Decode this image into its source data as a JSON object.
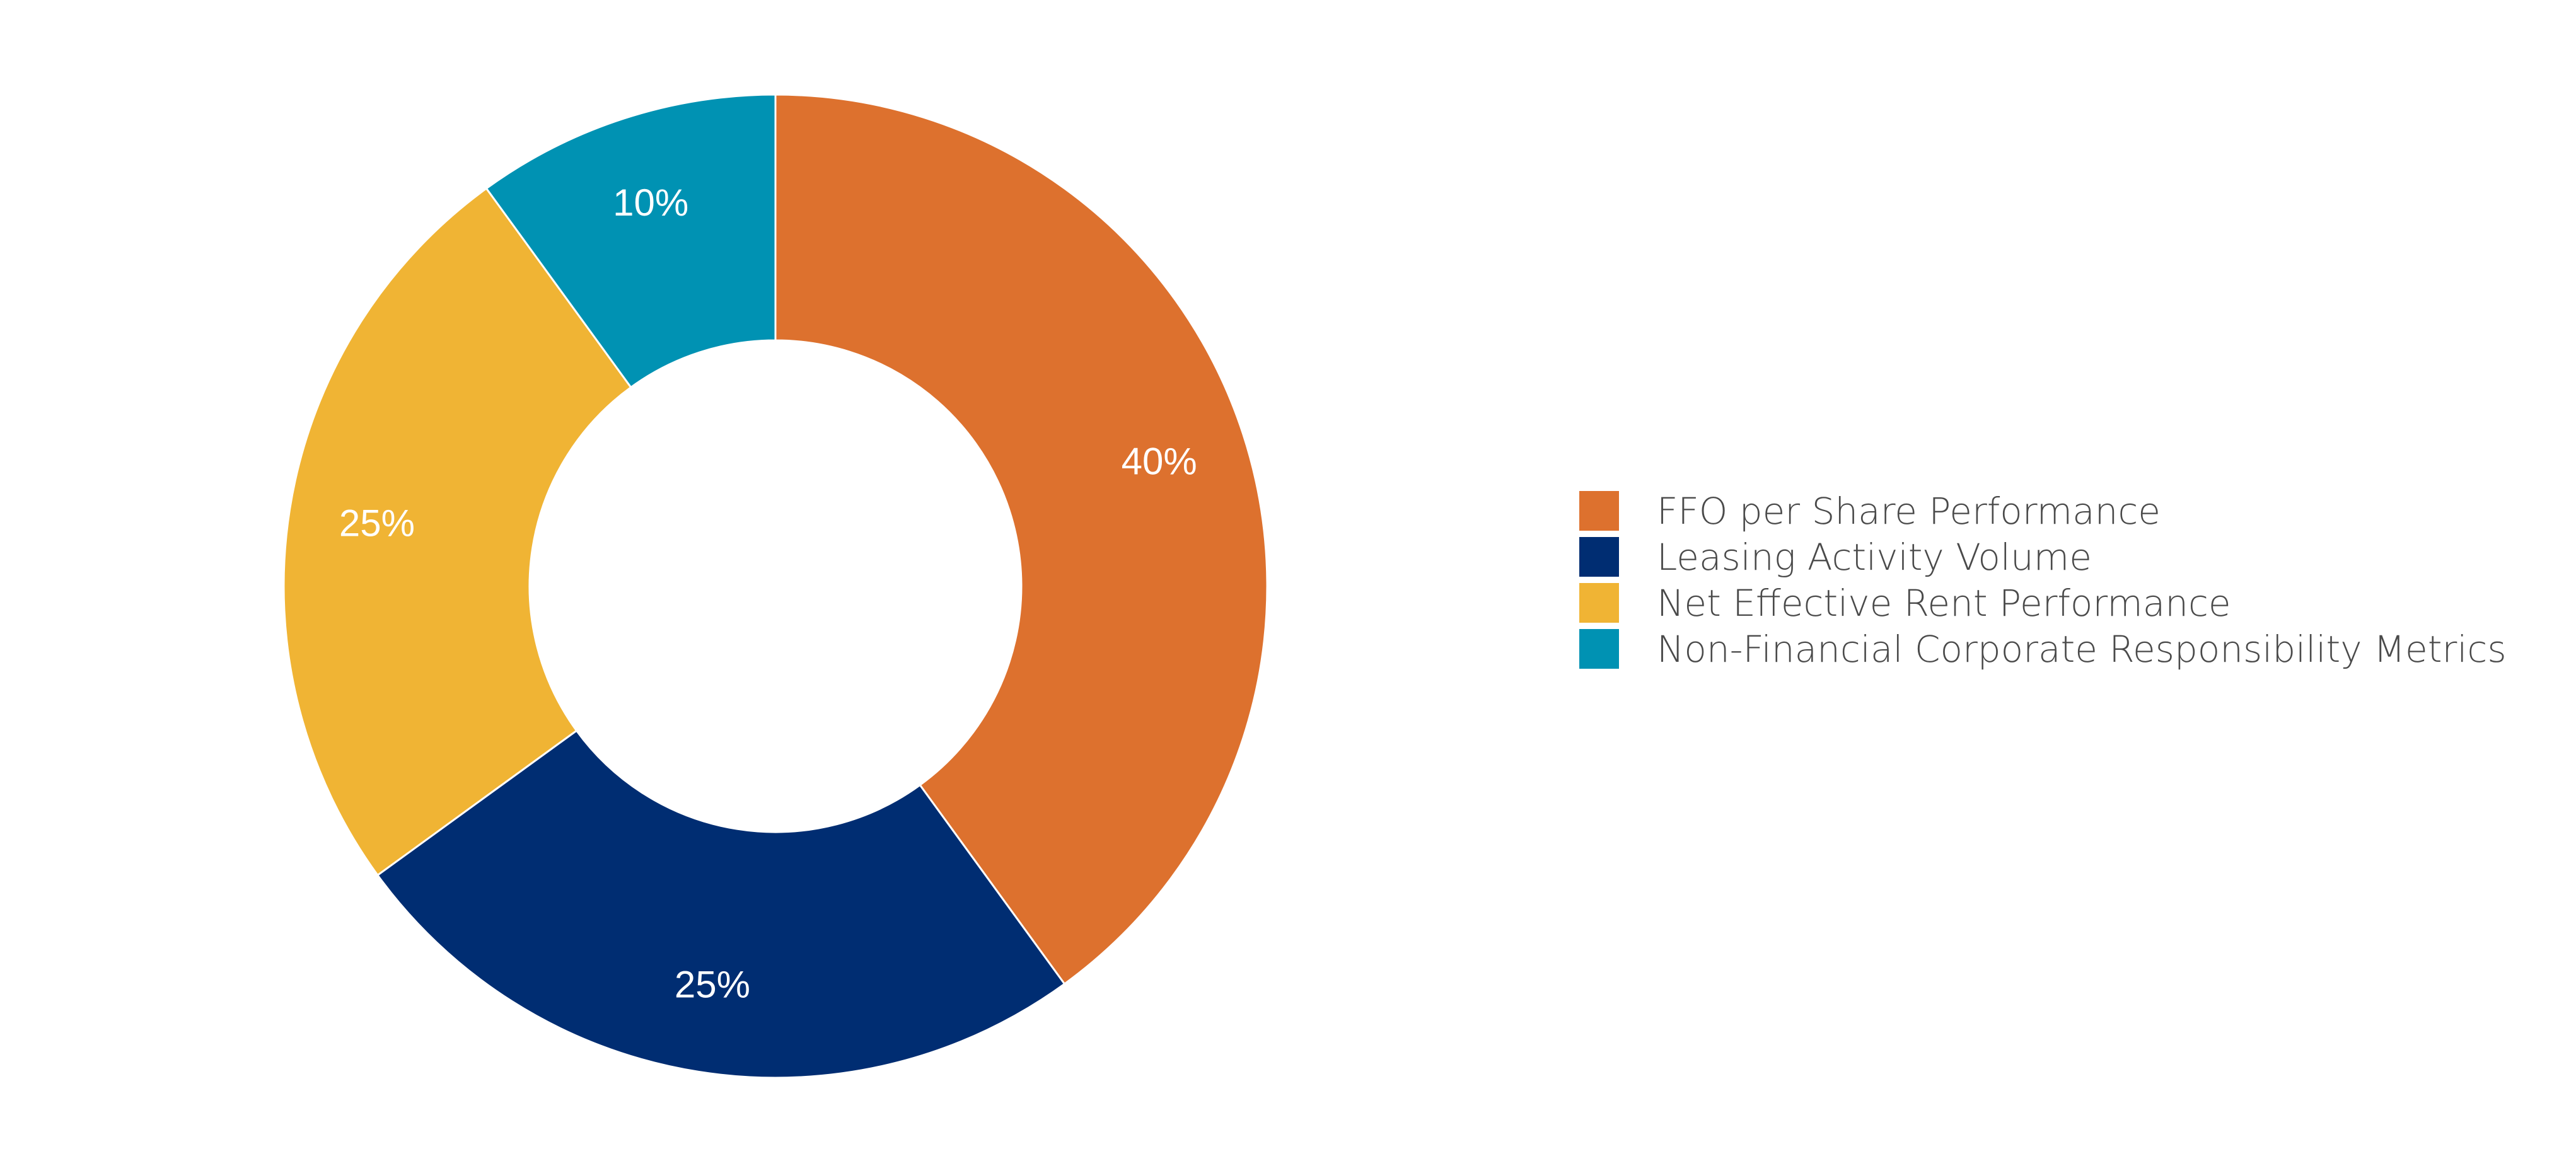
{
  "chart_data": {
    "type": "pie",
    "donut": true,
    "start_angle_deg": 0,
    "direction": "clockwise",
    "slices": [
      {
        "label": "FFO per Share Performance",
        "value": 40,
        "display": "40%",
        "color": "#DD712E"
      },
      {
        "label": "Leasing Activity Volume",
        "value": 25,
        "display": "25%",
        "color": "#002D72"
      },
      {
        "label": "Net Effective Rent Performance",
        "value": 25,
        "display": "25%",
        "color": "#F0B434"
      },
      {
        "label": "Non-Financial Corporate Responsibility Metrics",
        "value": 10,
        "display": "10%",
        "color": "#0092B3"
      }
    ],
    "legend": {
      "placement": "right",
      "entries": [
        "FFO per Share Performance",
        "Leasing Activity Volume",
        "Net Effective Rent Performance",
        "Non-Financial Corporate Responsibility Metrics"
      ]
    },
    "title": "",
    "unit": "%"
  }
}
